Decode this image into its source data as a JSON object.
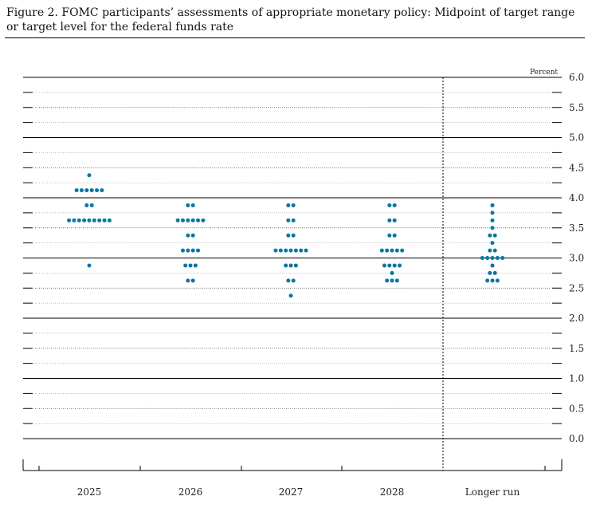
{
  "chart_data": {
    "type": "scatter",
    "title": "Figure 2. FOMC participants’ assessments of appropriate monetary policy: Midpoint of target range or target level for the federal funds rate",
    "ylabel": "Percent",
    "ylim": [
      0,
      6
    ],
    "yticks": [
      {
        "v": 6.0,
        "label": "6.0"
      },
      {
        "v": 5.5,
        "label": "5.5"
      },
      {
        "v": 5.0,
        "label": "5.0"
      },
      {
        "v": 4.5,
        "label": "4.5"
      },
      {
        "v": 4.0,
        "label": "4.0"
      },
      {
        "v": 3.5,
        "label": "3.5"
      },
      {
        "v": 3.0,
        "label": "3.0"
      },
      {
        "v": 2.5,
        "label": "2.5"
      },
      {
        "v": 2.0,
        "label": "2.0"
      },
      {
        "v": 1.5,
        "label": "1.5"
      },
      {
        "v": 1.0,
        "label": "1.0"
      },
      {
        "v": 0.5,
        "label": "0.5"
      },
      {
        "v": 0.0,
        "label": "0.0"
      }
    ],
    "categories": [
      "2025",
      "2026",
      "2027",
      "2028",
      "Longer run"
    ],
    "dot_color": "#0a77a3",
    "dots": [
      [
        {
          "y": 4.375,
          "n": 1
        },
        {
          "y": 4.125,
          "n": 6
        },
        {
          "y": 3.875,
          "n": 2
        },
        {
          "y": 3.625,
          "n": 9
        },
        {
          "y": 2.875,
          "n": 1
        }
      ],
      [
        {
          "y": 3.875,
          "n": 2
        },
        {
          "y": 3.625,
          "n": 6
        },
        {
          "y": 3.375,
          "n": 2
        },
        {
          "y": 3.125,
          "n": 4
        },
        {
          "y": 2.875,
          "n": 3
        },
        {
          "y": 2.625,
          "n": 2
        }
      ],
      [
        {
          "y": 3.875,
          "n": 2
        },
        {
          "y": 3.625,
          "n": 2
        },
        {
          "y": 3.375,
          "n": 2
        },
        {
          "y": 3.125,
          "n": 7
        },
        {
          "y": 2.875,
          "n": 3
        },
        {
          "y": 2.625,
          "n": 2
        },
        {
          "y": 2.375,
          "n": 1
        }
      ],
      [
        {
          "y": 3.875,
          "n": 2
        },
        {
          "y": 3.625,
          "n": 2
        },
        {
          "y": 3.375,
          "n": 2
        },
        {
          "y": 3.125,
          "n": 5
        },
        {
          "y": 2.875,
          "n": 4
        },
        {
          "y": 2.75,
          "n": 1
        },
        {
          "y": 2.625,
          "n": 3
        }
      ],
      [
        {
          "y": 3.875,
          "n": 1
        },
        {
          "y": 3.75,
          "n": 1
        },
        {
          "y": 3.625,
          "n": 1
        },
        {
          "y": 3.5,
          "n": 1
        },
        {
          "y": 3.375,
          "n": 2
        },
        {
          "y": 3.25,
          "n": 1
        },
        {
          "y": 3.125,
          "n": 2
        },
        {
          "y": 3.0,
          "n": 5
        },
        {
          "y": 2.875,
          "n": 1
        },
        {
          "y": 2.75,
          "n": 2
        },
        {
          "y": 2.625,
          "n": 3
        }
      ]
    ]
  }
}
